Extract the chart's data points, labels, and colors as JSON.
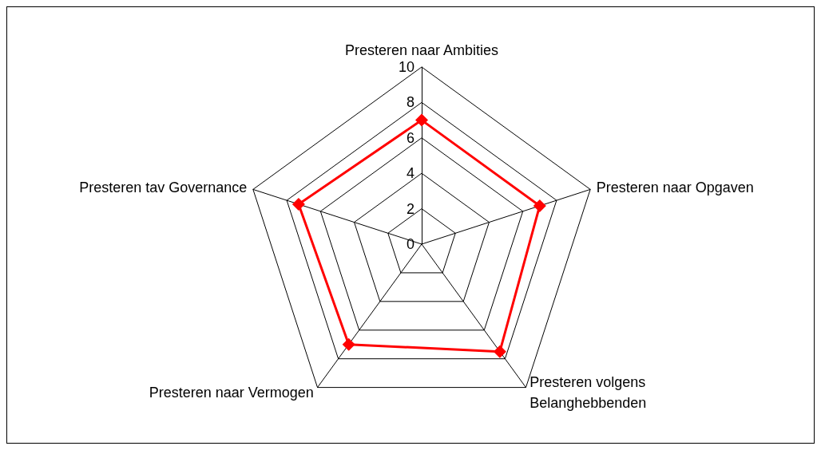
{
  "chart_data": {
    "type": "radar",
    "categories": [
      "Presteren naar Ambities",
      "Presteren naar Opgaven",
      "Presteren volgens Belanghebbenden",
      "Presteren naar Vermogen",
      "Presteren tav Governance"
    ],
    "series": [
      {
        "color": "#ff0000",
        "values": [
          7,
          7,
          7.5,
          7,
          7.3
        ]
      }
    ],
    "ylim": [
      0,
      10
    ],
    "yticks": [
      0,
      2,
      4,
      6,
      8,
      10
    ],
    "grid": true,
    "marker": "diamond",
    "line_style": "solid"
  }
}
